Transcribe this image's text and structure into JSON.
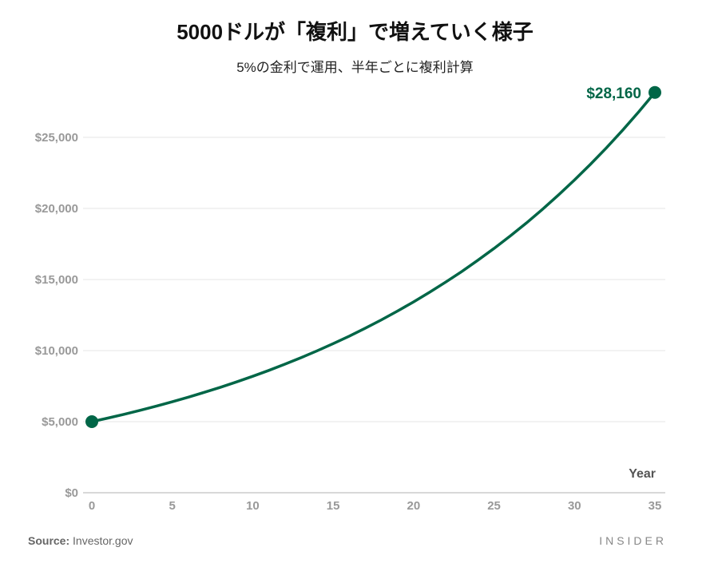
{
  "title": "5000ドルが「複利」で増えていく様子",
  "subtitle": "5%の金利で運用、半年ごとに複利計算",
  "source_label": "Source:",
  "source_value": "Investor.gov",
  "logo": "INSIDER",
  "chart_data": {
    "type": "line",
    "title": "5000ドルが「複利」で増えていく様子",
    "subtitle": "5%の金利で運用、半年ごとに複利計算",
    "xlabel": "Year",
    "ylabel": "",
    "xlim": [
      0,
      35
    ],
    "ylim": [
      0,
      25000
    ],
    "x_ticks": [
      "0",
      "5",
      "10",
      "15",
      "20",
      "25",
      "30",
      "35"
    ],
    "x_tick_values": [
      0,
      5,
      10,
      15,
      20,
      25,
      30,
      35
    ],
    "y_ticks": [
      "$0",
      "$5,000",
      "$10,000",
      "$15,000",
      "$20,000",
      "$25,000"
    ],
    "y_tick_values": [
      0,
      5000,
      10000,
      15000,
      20000,
      25000
    ],
    "grid": true,
    "color": "#006647",
    "series": [
      {
        "x": [
          0,
          1,
          2,
          3,
          4,
          5,
          6,
          7,
          8,
          9,
          10,
          11,
          12,
          13,
          14,
          15,
          16,
          17,
          18,
          19,
          20,
          21,
          22,
          23,
          24,
          25,
          26,
          27,
          28,
          29,
          30,
          31,
          32,
          33,
          34,
          35
        ],
        "y": [
          5000,
          5253,
          5519,
          5798,
          6092,
          6400,
          6724,
          7065,
          7423,
          7798,
          8193,
          8608,
          9044,
          9502,
          9983,
          10488,
          11019,
          11577,
          12163,
          12779,
          13425,
          14105,
          14819,
          15569,
          16357,
          17185,
          18055,
          18969,
          19929,
          20938,
          21998,
          23112,
          24282,
          25511,
          26802,
          28160
        ]
      }
    ],
    "annotations": [
      {
        "x": 35,
        "y": 28160,
        "text": "$28,160"
      }
    ]
  }
}
